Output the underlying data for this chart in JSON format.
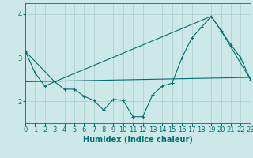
{
  "title": "",
  "xlabel": "Humidex (Indice chaleur)",
  "xlim": [
    0,
    23
  ],
  "ylim": [
    1.5,
    4.25
  ],
  "yticks": [
    2,
    3,
    4
  ],
  "xticks": [
    0,
    1,
    2,
    3,
    4,
    5,
    6,
    7,
    8,
    9,
    10,
    11,
    12,
    13,
    14,
    15,
    16,
    17,
    18,
    19,
    20,
    21,
    22,
    23
  ],
  "bg_color": "#cce8e8",
  "grid_color": "#aacccc",
  "line_color": "#007070",
  "series1_x": [
    0,
    1,
    2,
    3,
    4,
    5,
    6,
    7,
    8,
    9,
    10,
    11,
    12,
    13,
    14,
    15,
    16,
    17,
    18,
    19,
    20,
    21,
    22,
    23
  ],
  "series1_y": [
    3.15,
    2.65,
    2.35,
    2.45,
    2.28,
    2.28,
    2.12,
    2.02,
    1.8,
    2.05,
    2.02,
    1.65,
    1.65,
    2.15,
    2.35,
    2.42,
    3.0,
    3.45,
    3.7,
    3.95,
    3.62,
    3.3,
    3.0,
    2.5
  ],
  "series2_x": [
    0,
    3,
    19,
    20,
    23
  ],
  "series2_y": [
    3.15,
    2.45,
    3.95,
    3.62,
    2.5
  ],
  "series3_x": [
    0,
    23
  ],
  "series3_y": [
    2.45,
    2.55
  ],
  "xlabel_fontsize": 7,
  "tick_fontsize": 6
}
